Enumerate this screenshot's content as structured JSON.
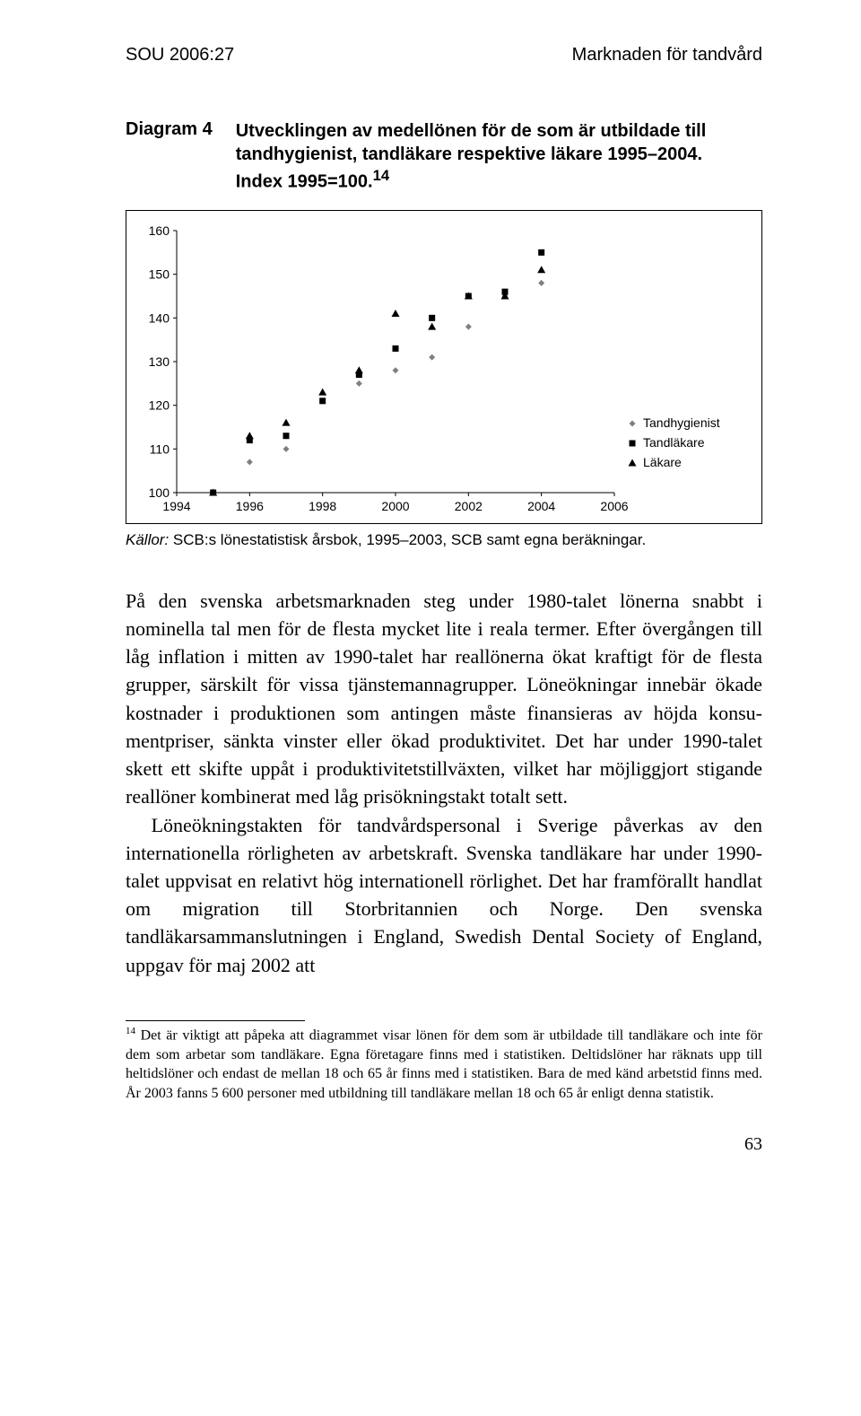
{
  "header": {
    "left": "SOU 2006:27",
    "right": "Marknaden för tandvård"
  },
  "diagram": {
    "label": "Diagram 4",
    "title_line1": "Utvecklingen av medellönen för de som är utbildade till",
    "title_line2": "tandhygienist, tandläkare respektive läkare 1995–2004.",
    "title_line3": "Index 1995=100.",
    "footref": "14"
  },
  "chart": {
    "type": "line",
    "background_color": "#ffffff",
    "border_color": "#000000",
    "grid_color": "#000000",
    "axis_color": "#000000",
    "tick_color": "#000000",
    "text_color": "#000000",
    "label_fontsize": 14,
    "legend_fontsize": 14,
    "xlim": [
      1994,
      2006
    ],
    "ylim": [
      100,
      160
    ],
    "ytick_step": 10,
    "xtick_step": 2,
    "xticks": [
      1994,
      1996,
      1998,
      2000,
      2002,
      2004,
      2006
    ],
    "yticks": [
      100,
      110,
      120,
      130,
      140,
      150,
      160
    ],
    "legend_position": "right_middle",
    "marker_size": 7,
    "series": [
      {
        "name": "Tandhygienist",
        "marker": "diamond",
        "color": "#7f7f7f",
        "x": [
          1995,
          1996,
          1997,
          1998,
          1999,
          2000,
          2001,
          2002,
          2003,
          2004
        ],
        "y": [
          100,
          107,
          110,
          121,
          125,
          128,
          131,
          138,
          145,
          148
        ]
      },
      {
        "name": "Tandläkare",
        "marker": "square",
        "color": "#000000",
        "x": [
          1995,
          1996,
          1997,
          1998,
          1999,
          2000,
          2001,
          2002,
          2003,
          2004
        ],
        "y": [
          100,
          112,
          113,
          121,
          127,
          133,
          140,
          145,
          146,
          155
        ]
      },
      {
        "name": "Läkare",
        "marker": "triangle",
        "color": "#000000",
        "x": [
          1995,
          1996,
          1997,
          1998,
          1999,
          2000,
          2001,
          2002,
          2003,
          2004
        ],
        "y": [
          100,
          113,
          116,
          123,
          128,
          141,
          138,
          145,
          145,
          151
        ]
      }
    ]
  },
  "kallor": {
    "label": "Källor:",
    "text": " SCB:s lönestatistisk årsbok, 1995–2003, SCB samt egna beräkningar."
  },
  "body": {
    "p1": "På den svenska arbetsmarknaden steg under 1980-talet lönerna snabbt i nominella tal men för de flesta mycket lite i reala termer. Efter övergången till låg inflation i mitten av 1990-talet har real­lönerna ökat kraftigt för de flesta grupper, särskilt för vissa tjänstemannagrupper. Löneökningar innebär ökade kostnader i produktionen som antingen måste finansieras av höjda konsu­mentpriser, sänkta vinster eller ökad produktivitet. Det har under 1990-talet skett ett skifte uppåt i produktivitetstillväxten, vilket har möjliggjort stigande reallöner kombinerat med låg prisökningstakt totalt sett.",
    "p2": "Löneökningstakten för tandvårdspersonal i Sverige påverkas av den internationella rörligheten av arbetskraft. Svenska tandläkare har under 1990-talet uppvisat en relativt hög internationell rörlig­het. Det har framförallt handlat om migration till Storbritannien och Norge. Den svenska tandläkarsammanslutningen i England, Swedish Dental Society of England, uppgav för maj 2002 att"
  },
  "footnote": {
    "ref": "14",
    "text": " Det är viktigt att påpeka att diagrammet visar lönen för dem som är utbildade till tandläkare och inte för dem som arbetar som tandläkare. Egna företagare finns med i statistiken. Deltidslöner har räknats upp till heltidslöner och endast de mellan 18 och 65 år finns med i statistiken. Bara de med känd arbetstid finns med. År 2003 fanns 5 600 personer med utbildning till tandläkare mellan 18 och 65 år enligt denna statistik."
  },
  "page_number": "63"
}
